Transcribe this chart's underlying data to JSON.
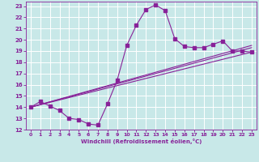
{
  "xlabel": "Windchill (Refroidissement éolien,°C)",
  "ylabel": "",
  "xlim": [
    -0.5,
    23.5
  ],
  "ylim": [
    12,
    23.4
  ],
  "xticks": [
    0,
    1,
    2,
    3,
    4,
    5,
    6,
    7,
    8,
    9,
    10,
    11,
    12,
    13,
    14,
    15,
    16,
    17,
    18,
    19,
    20,
    21,
    22,
    23
  ],
  "yticks": [
    12,
    13,
    14,
    15,
    16,
    17,
    18,
    19,
    20,
    21,
    22,
    23
  ],
  "background_color": "#c8e8e8",
  "grid_color": "#ffffff",
  "line_color": "#882299",
  "line1_x": [
    0,
    1,
    2,
    3,
    4,
    5,
    6,
    7,
    8,
    9,
    10,
    11,
    12,
    13,
    14,
    15,
    16,
    17,
    18,
    19,
    20,
    21,
    22,
    23
  ],
  "line1_y": [
    14.0,
    14.5,
    14.1,
    13.7,
    13.0,
    12.9,
    12.5,
    12.4,
    14.3,
    16.4,
    19.5,
    21.3,
    22.7,
    23.1,
    22.6,
    20.1,
    19.4,
    19.3,
    19.3,
    19.6,
    19.9,
    19.0,
    19.0,
    18.9
  ],
  "line2_x": [
    0,
    23
  ],
  "line2_y": [
    14.0,
    19.3
  ],
  "line3_x": [
    0,
    23
  ],
  "line3_y": [
    14.0,
    18.9
  ],
  "line4_x": [
    0,
    23
  ],
  "line4_y": [
    14.0,
    19.5
  ],
  "markersize": 2.5
}
